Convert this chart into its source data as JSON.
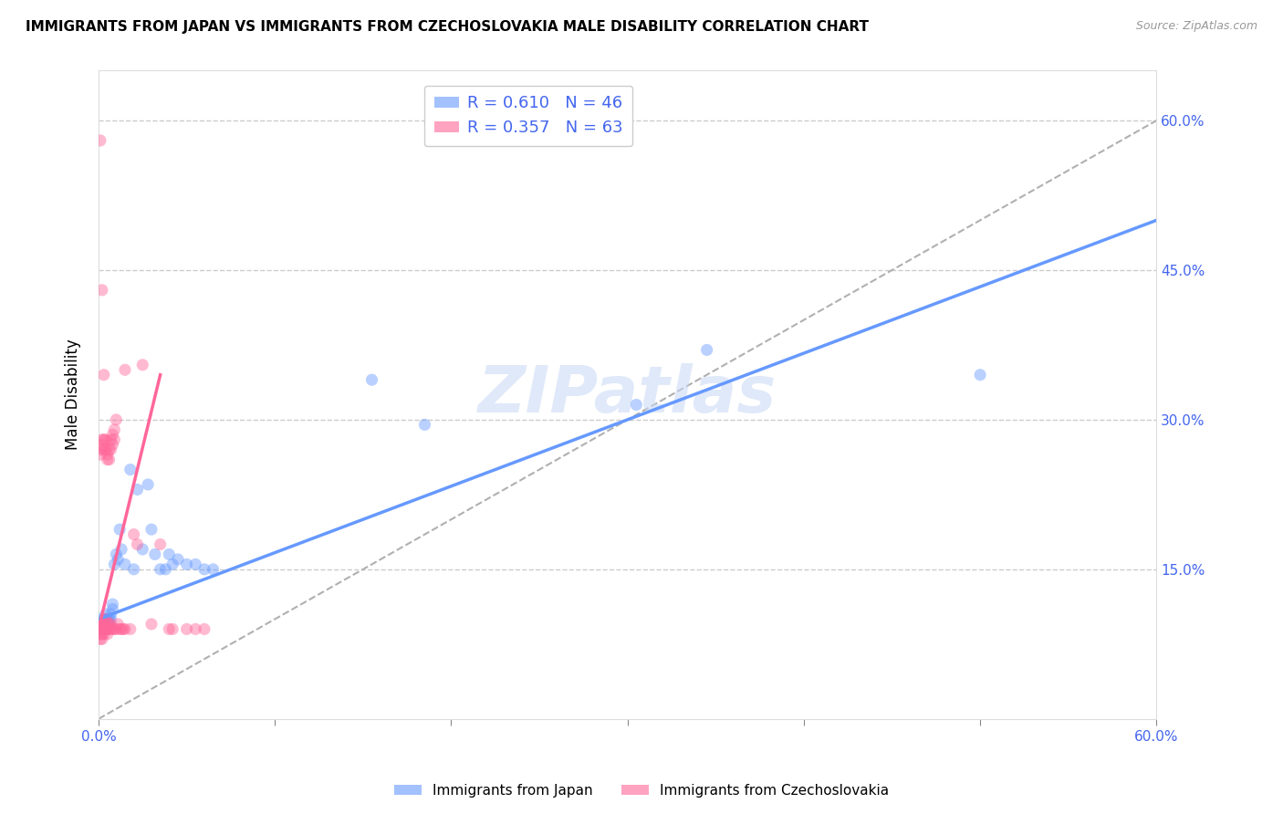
{
  "title": "IMMIGRANTS FROM JAPAN VS IMMIGRANTS FROM CZECHOSLOVAKIA MALE DISABILITY CORRELATION CHART",
  "source": "Source: ZipAtlas.com",
  "ylabel": "Male Disability",
  "xlim": [
    0.0,
    0.6
  ],
  "ylim": [
    0.0,
    0.65
  ],
  "xticks": [
    0.0,
    0.1,
    0.2,
    0.3,
    0.4,
    0.5,
    0.6
  ],
  "xticklabels": [
    "0.0%",
    "",
    "",
    "",
    "",
    "",
    "60.0%"
  ],
  "yticks": [
    0.0,
    0.15,
    0.3,
    0.45,
    0.6
  ],
  "yticklabels": [
    "",
    "15.0%",
    "30.0%",
    "45.0%",
    "60.0%"
  ],
  "grid_color": "#cccccc",
  "background_color": "#ffffff",
  "japan_color": "#6699ff",
  "czech_color": "#ff6699",
  "japan_R": 0.61,
  "japan_N": 46,
  "czech_R": 0.357,
  "czech_N": 63,
  "watermark": "ZIPatlas",
  "japan_line": [
    [
      0.0,
      0.1
    ],
    [
      0.6,
      0.5
    ]
  ],
  "czech_line": [
    [
      0.0,
      0.09
    ],
    [
      0.035,
      0.345
    ]
  ],
  "diag_line": [
    [
      0.0,
      0.0
    ],
    [
      0.6,
      0.6
    ]
  ],
  "japan_scatter": [
    [
      0.001,
      0.09
    ],
    [
      0.001,
      0.095
    ],
    [
      0.002,
      0.1
    ],
    [
      0.002,
      0.095
    ],
    [
      0.003,
      0.095
    ],
    [
      0.003,
      0.1
    ],
    [
      0.003,
      0.09
    ],
    [
      0.004,
      0.105
    ],
    [
      0.004,
      0.095
    ],
    [
      0.004,
      0.1
    ],
    [
      0.005,
      0.1
    ],
    [
      0.005,
      0.09
    ],
    [
      0.005,
      0.095
    ],
    [
      0.006,
      0.1
    ],
    [
      0.006,
      0.095
    ],
    [
      0.007,
      0.105
    ],
    [
      0.007,
      0.1
    ],
    [
      0.008,
      0.11
    ],
    [
      0.008,
      0.115
    ],
    [
      0.009,
      0.155
    ],
    [
      0.01,
      0.165
    ],
    [
      0.011,
      0.16
    ],
    [
      0.012,
      0.19
    ],
    [
      0.013,
      0.17
    ],
    [
      0.015,
      0.155
    ],
    [
      0.018,
      0.25
    ],
    [
      0.02,
      0.15
    ],
    [
      0.022,
      0.23
    ],
    [
      0.025,
      0.17
    ],
    [
      0.028,
      0.235
    ],
    [
      0.03,
      0.19
    ],
    [
      0.032,
      0.165
    ],
    [
      0.035,
      0.15
    ],
    [
      0.038,
      0.15
    ],
    [
      0.04,
      0.165
    ],
    [
      0.042,
      0.155
    ],
    [
      0.045,
      0.16
    ],
    [
      0.05,
      0.155
    ],
    [
      0.055,
      0.155
    ],
    [
      0.06,
      0.15
    ],
    [
      0.065,
      0.15
    ],
    [
      0.155,
      0.34
    ],
    [
      0.185,
      0.295
    ],
    [
      0.305,
      0.315
    ],
    [
      0.345,
      0.37
    ],
    [
      0.5,
      0.345
    ]
  ],
  "czech_scatter": [
    [
      0.001,
      0.58
    ],
    [
      0.001,
      0.265
    ],
    [
      0.001,
      0.27
    ],
    [
      0.002,
      0.43
    ],
    [
      0.002,
      0.28
    ],
    [
      0.002,
      0.275
    ],
    [
      0.001,
      0.095
    ],
    [
      0.001,
      0.09
    ],
    [
      0.001,
      0.085
    ],
    [
      0.001,
      0.08
    ],
    [
      0.002,
      0.095
    ],
    [
      0.002,
      0.09
    ],
    [
      0.002,
      0.085
    ],
    [
      0.002,
      0.08
    ],
    [
      0.003,
      0.345
    ],
    [
      0.003,
      0.28
    ],
    [
      0.003,
      0.27
    ],
    [
      0.003,
      0.095
    ],
    [
      0.003,
      0.09
    ],
    [
      0.003,
      0.085
    ],
    [
      0.004,
      0.28
    ],
    [
      0.004,
      0.27
    ],
    [
      0.004,
      0.1
    ],
    [
      0.004,
      0.095
    ],
    [
      0.004,
      0.09
    ],
    [
      0.005,
      0.265
    ],
    [
      0.005,
      0.26
    ],
    [
      0.005,
      0.095
    ],
    [
      0.005,
      0.09
    ],
    [
      0.005,
      0.085
    ],
    [
      0.006,
      0.27
    ],
    [
      0.006,
      0.26
    ],
    [
      0.006,
      0.095
    ],
    [
      0.006,
      0.09
    ],
    [
      0.007,
      0.28
    ],
    [
      0.007,
      0.27
    ],
    [
      0.007,
      0.095
    ],
    [
      0.007,
      0.09
    ],
    [
      0.008,
      0.285
    ],
    [
      0.008,
      0.275
    ],
    [
      0.008,
      0.09
    ],
    [
      0.009,
      0.29
    ],
    [
      0.009,
      0.28
    ],
    [
      0.009,
      0.09
    ],
    [
      0.01,
      0.3
    ],
    [
      0.01,
      0.09
    ],
    [
      0.011,
      0.095
    ],
    [
      0.012,
      0.09
    ],
    [
      0.013,
      0.09
    ],
    [
      0.014,
      0.09
    ],
    [
      0.015,
      0.35
    ],
    [
      0.015,
      0.09
    ],
    [
      0.018,
      0.09
    ],
    [
      0.02,
      0.185
    ],
    [
      0.022,
      0.175
    ],
    [
      0.025,
      0.355
    ],
    [
      0.03,
      0.095
    ],
    [
      0.035,
      0.175
    ],
    [
      0.04,
      0.09
    ],
    [
      0.042,
      0.09
    ],
    [
      0.05,
      0.09
    ],
    [
      0.055,
      0.09
    ],
    [
      0.06,
      0.09
    ]
  ]
}
